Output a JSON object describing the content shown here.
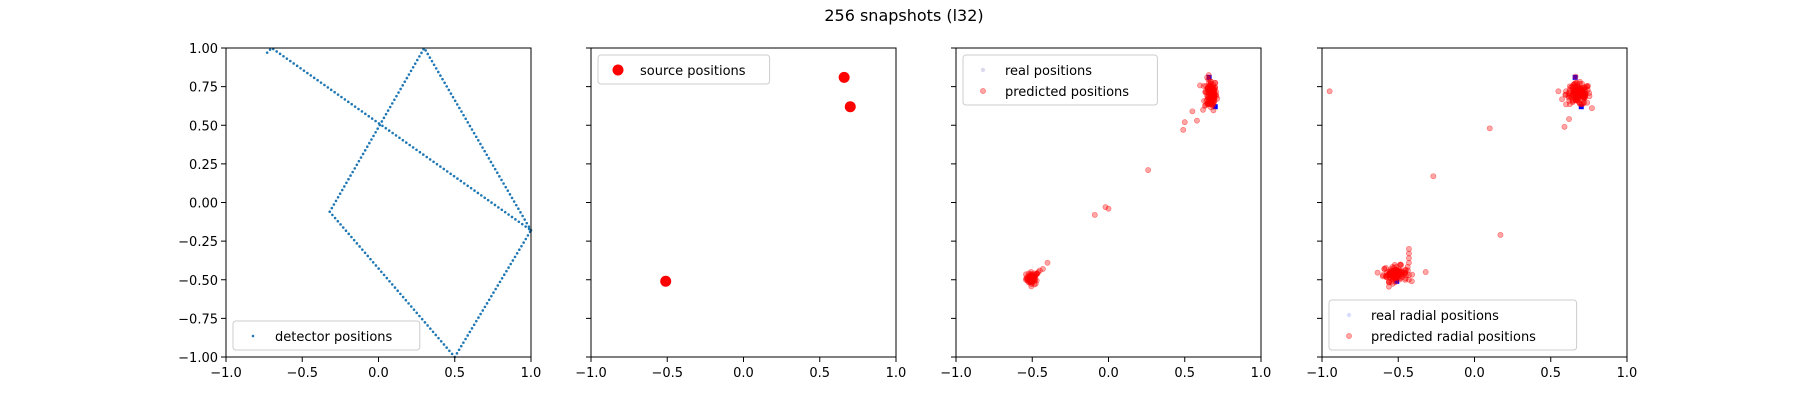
{
  "figure": {
    "title": "256 snapshots (l32)"
  },
  "colors": {
    "detector": "#1f77b4",
    "source": "#ff0000",
    "predicted": "#ff0000",
    "real": "#0000ff"
  },
  "chart_data": [
    {
      "type": "scatter",
      "xlim": [
        -1.0,
        1.0
      ],
      "ylim": [
        -1.0,
        1.0
      ],
      "xticks": [
        "-1.0",
        "-0.5",
        "0.0",
        "0.5",
        "1.0"
      ],
      "yticks": [
        "-1.00",
        "-0.75",
        "-0.50",
        "-0.25",
        "0.00",
        "0.25",
        "0.50",
        "0.75",
        "1.00"
      ],
      "show_yticklabels": true,
      "grid": false,
      "legend": {
        "placement": "lower-left",
        "entries": [
          {
            "label": "detector positions",
            "marker": "dot",
            "series": "detector"
          }
        ]
      },
      "series": [
        {
          "name": "detector positions",
          "color": "#1f77b4",
          "marker": "dot",
          "polyline": [
            [
              -0.73,
              0.97
            ],
            [
              -0.7,
              1.0
            ],
            [
              1.0,
              -0.18
            ],
            [
              0.5,
              -1.0
            ],
            [
              -0.32,
              -0.06
            ],
            [
              0.3,
              1.0
            ],
            [
              1.0,
              -0.18
            ]
          ],
          "count": 256
        }
      ]
    },
    {
      "type": "scatter",
      "xlim": [
        -1.0,
        1.0
      ],
      "ylim": [
        -1.0,
        1.0
      ],
      "xticks": [
        "-1.0",
        "-0.5",
        "0.0",
        "0.5",
        "1.0"
      ],
      "yticks": [
        "-1.00",
        "-0.75",
        "-0.50",
        "-0.25",
        "0.00",
        "0.25",
        "0.50",
        "0.75",
        "1.00"
      ],
      "show_yticklabels": false,
      "grid": false,
      "legend": {
        "placement": "upper-left",
        "entries": [
          {
            "label": "source positions",
            "marker": "big-dot",
            "series": "source"
          }
        ]
      },
      "series": [
        {
          "name": "source positions",
          "color": "#ff0000",
          "marker": "big-dot",
          "points": [
            [
              -0.51,
              -0.51
            ],
            [
              0.66,
              0.81
            ],
            [
              0.7,
              0.62
            ]
          ]
        }
      ]
    },
    {
      "type": "scatter",
      "xlim": [
        -1.0,
        1.0
      ],
      "ylim": [
        -1.0,
        1.0
      ],
      "xticks": [
        "-1.0",
        "-0.5",
        "0.0",
        "0.5",
        "1.0"
      ],
      "yticks": [
        "-1.00",
        "-0.75",
        "-0.50",
        "-0.25",
        "0.00",
        "0.25",
        "0.50",
        "0.75",
        "1.00"
      ],
      "show_yticklabels": false,
      "grid": false,
      "legend": {
        "placement": "upper-left",
        "entries": [
          {
            "label": "real positions",
            "marker": "faint-dot",
            "series": "real"
          },
          {
            "label": "predicted positions",
            "marker": "dot-red",
            "series": "predicted"
          }
        ]
      },
      "series": [
        {
          "name": "real positions",
          "color": "#0000ff",
          "marker": "square",
          "points": [
            [
              -0.51,
              -0.51
            ],
            [
              0.66,
              0.81
            ],
            [
              0.7,
              0.62
            ]
          ]
        },
        {
          "name": "predicted positions",
          "color": "#ff0000",
          "marker": "dot-red",
          "clusters": [
            {
              "center": [
                -0.5,
                -0.49
              ],
              "spread": [
                0.02,
                0.02
              ],
              "count": 60
            },
            {
              "center": [
                0.67,
                0.7
              ],
              "spread": [
                0.02,
                0.05
              ],
              "count": 120
            }
          ],
          "points": [
            [
              -0.45,
              -0.44
            ],
            [
              -0.43,
              -0.43
            ],
            [
              -0.4,
              -0.39
            ],
            [
              -0.46,
              -0.45
            ],
            [
              -0.09,
              -0.08
            ],
            [
              -0.02,
              -0.03
            ],
            [
              0.0,
              -0.04
            ],
            [
              0.26,
              0.21
            ],
            [
              0.49,
              0.47
            ],
            [
              0.5,
              0.52
            ],
            [
              0.55,
              0.59
            ],
            [
              0.58,
              0.53
            ],
            [
              0.62,
              0.6
            ]
          ]
        }
      ]
    },
    {
      "type": "scatter",
      "xlim": [
        -1.0,
        1.0
      ],
      "ylim": [
        -1.0,
        1.0
      ],
      "xticks": [
        "-1.0",
        "-0.5",
        "0.0",
        "0.5",
        "1.0"
      ],
      "yticks": [
        "-1.00",
        "-0.75",
        "-0.50",
        "-0.25",
        "0.00",
        "0.25",
        "0.50",
        "0.75",
        "1.00"
      ],
      "show_yticklabels": false,
      "grid": false,
      "legend": {
        "placement": "lower-left",
        "entries": [
          {
            "label": "real radial positions",
            "marker": "faint-dot-blue",
            "series": "real"
          },
          {
            "label": "predicted radial positions",
            "marker": "dot-red",
            "series": "predicted"
          }
        ]
      },
      "series": [
        {
          "name": "real radial positions",
          "color": "#0000ff",
          "marker": "square",
          "points": [
            [
              -0.51,
              -0.51
            ],
            [
              0.66,
              0.81
            ],
            [
              0.7,
              0.62
            ]
          ]
        },
        {
          "name": "predicted radial positions",
          "color": "#ff0000",
          "marker": "dot-red",
          "clusters": [
            {
              "center": [
                -0.52,
                -0.46
              ],
              "spread": [
                0.04,
                0.025
              ],
              "count": 110
            },
            {
              "center": [
                0.68,
                0.7
              ],
              "spread": [
                0.04,
                0.035
              ],
              "count": 140
            }
          ],
          "points": [
            [
              -0.95,
              0.72
            ],
            [
              0.1,
              0.48
            ],
            [
              -0.27,
              0.17
            ],
            [
              0.17,
              -0.21
            ],
            [
              -0.43,
              -0.3
            ],
            [
              -0.43,
              -0.33
            ],
            [
              -0.43,
              -0.36
            ],
            [
              -0.43,
              -0.39
            ],
            [
              -0.32,
              -0.45
            ],
            [
              -0.43,
              -0.5
            ],
            [
              0.55,
              0.72
            ],
            [
              0.6,
              0.72
            ],
            [
              0.59,
              0.49
            ],
            [
              0.62,
              0.54
            ]
          ]
        }
      ]
    }
  ]
}
